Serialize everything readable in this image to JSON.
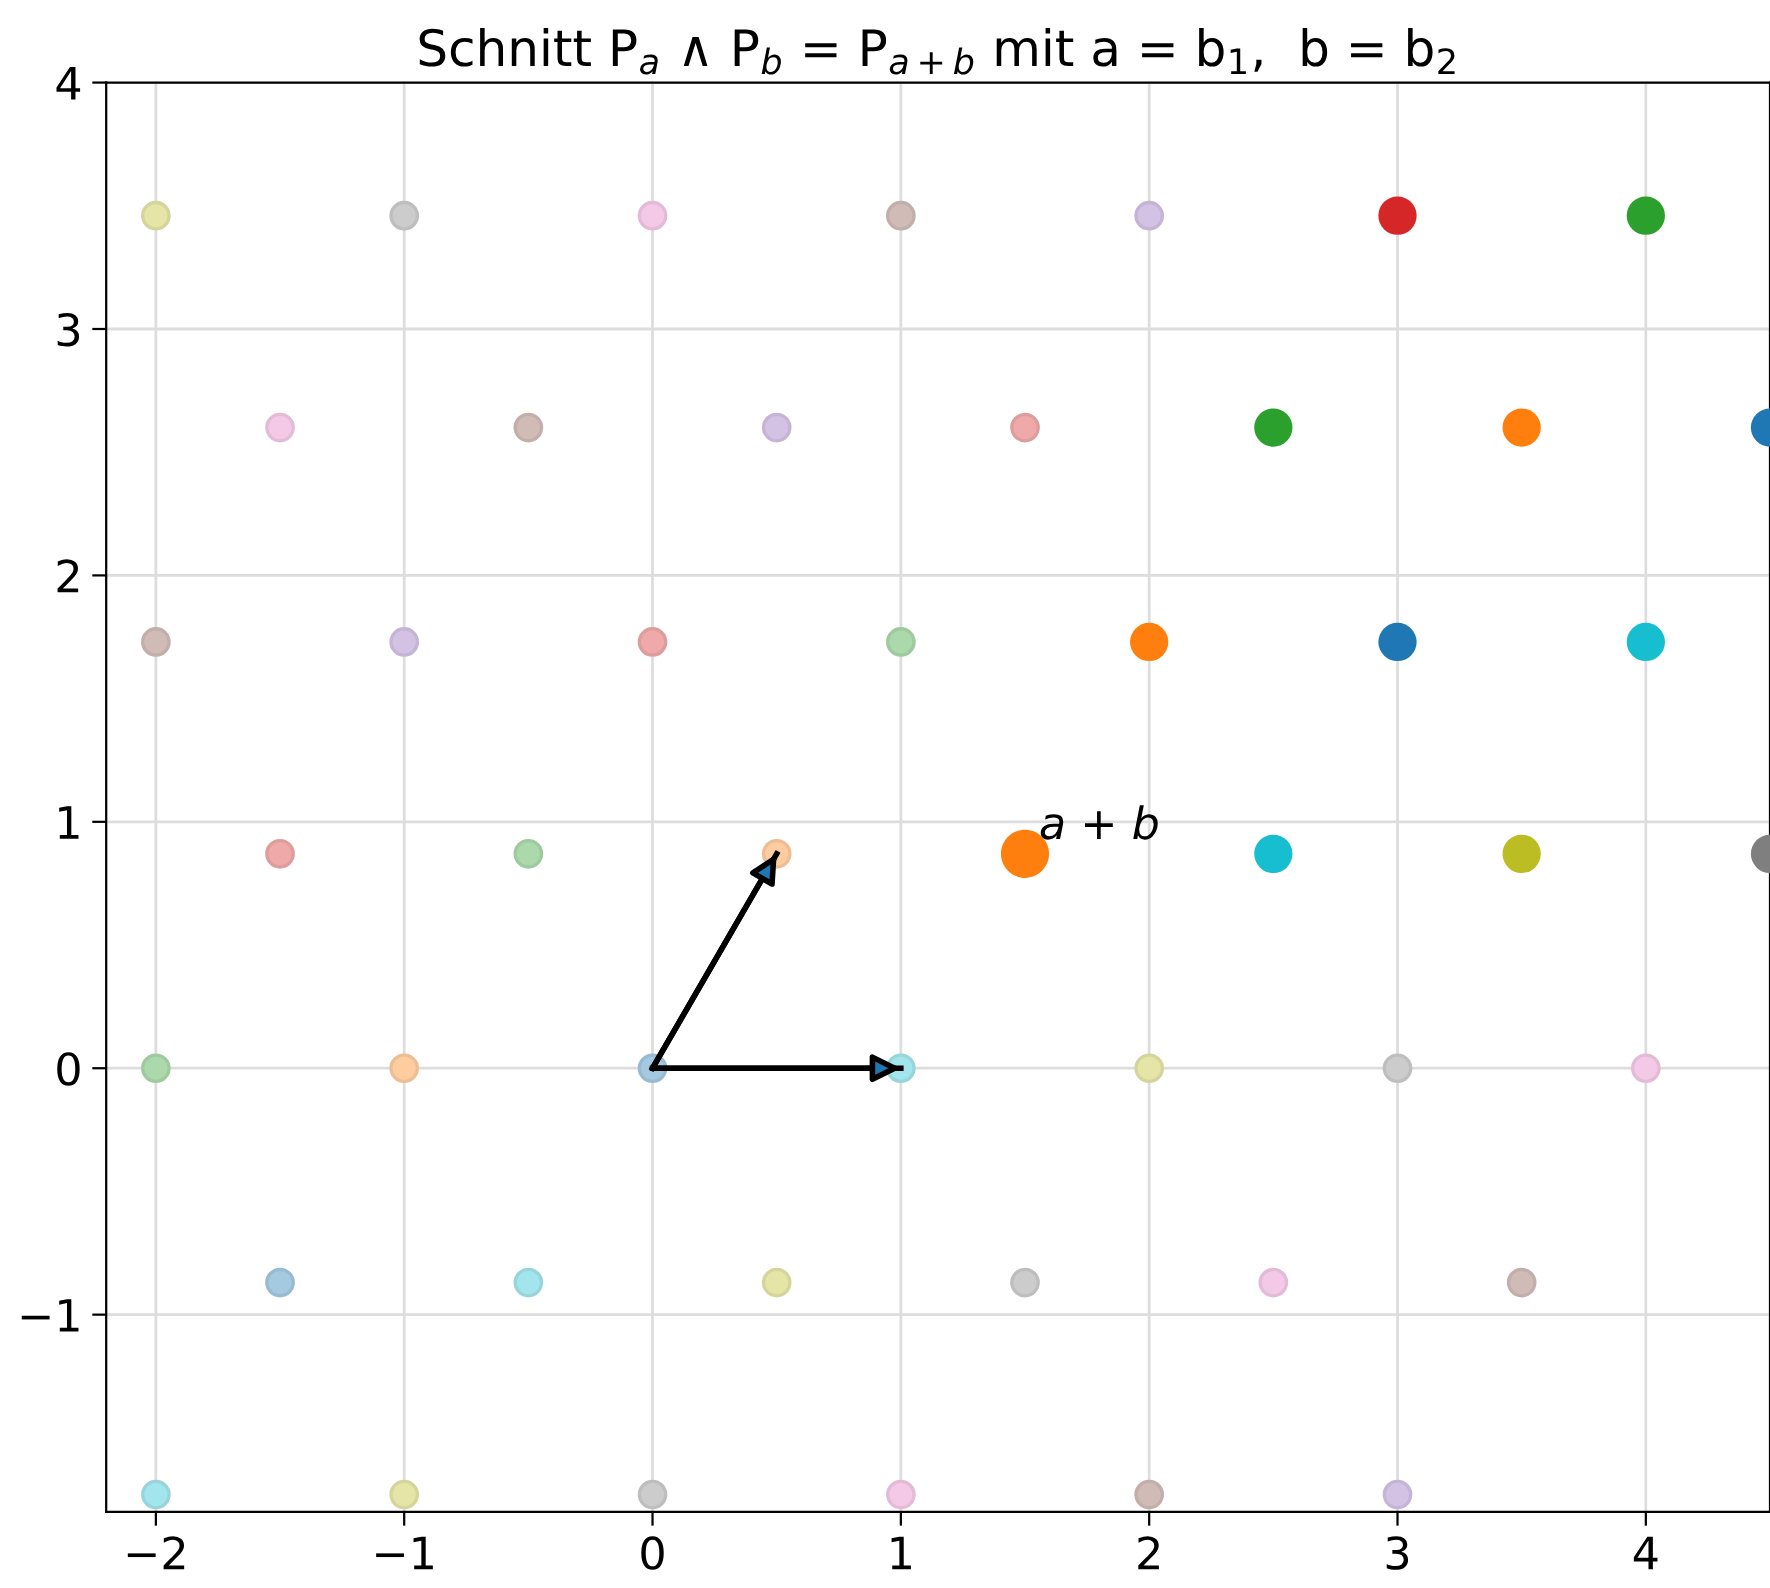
{
  "chart_data": {
    "type": "scatter",
    "title": "Schnitt P$_{a}$ ∧ P$_{b}$ = P$_{a+b}$ mit a = b$_{1}$,  b = b$_{2}$",
    "xlim": [
      -2.2,
      4.5
    ],
    "ylim": [
      -1.8,
      4
    ],
    "xticks": [
      -2,
      -1,
      0,
      1,
      2,
      3,
      4
    ],
    "yticks": [
      -1,
      0,
      1,
      2,
      3,
      4
    ],
    "grid": true,
    "annotations": [
      {
        "text": "a + b",
        "x": 1.5,
        "y": 0.87
      }
    ],
    "series": [
      {
        "marker": "circle",
        "x": [
          -2,
          -1,
          0,
          1,
          2,
          -1.5,
          -0.5,
          0.5,
          1.5,
          -2,
          -1,
          0,
          1,
          -1.5,
          -0.5,
          0.5,
          -2,
          -1,
          0,
          1,
          2,
          3,
          4,
          -1.5,
          -0.5,
          0.5,
          1.5,
          2.5,
          3.5,
          -2,
          -1,
          0,
          1,
          2,
          3
        ],
        "values": [
          3.46,
          3.46,
          3.46,
          3.46,
          3.46,
          2.6,
          2.6,
          2.6,
          2.6,
          1.73,
          1.73,
          1.73,
          1.73,
          0.87,
          0.87,
          0.87,
          0,
          0,
          0,
          0,
          0,
          0,
          0,
          -0.87,
          -0.87,
          -0.87,
          -0.87,
          -0.87,
          -0.87,
          -1.73,
          -1.73,
          -1.73,
          -1.73,
          -1.73,
          -1.73
        ],
        "colors": [
          "#e4e5a7",
          "#cccccc",
          "#f4c9e7",
          "#d1bbb7",
          "#d4c2e5",
          "#f4c9e7",
          "#d1bbb7",
          "#d4c2e5",
          "#efa9a9",
          "#d1bbb7",
          "#d4c2e5",
          "#efa9a9",
          "#abd9ab",
          "#efa9a9",
          "#abd9ab",
          "#ffcc9f",
          "#abd9ab",
          "#ffcc9f",
          "#a5c9e1",
          "#a2e5ec",
          "#e4e5a7",
          "#cccccc",
          "#f4c9e7",
          "#a5c9e1",
          "#a2e5ec",
          "#e4e5a7",
          "#cccccc",
          "#f4c9e7",
          "#d1bbb7",
          "#a2e5ec",
          "#e4e5a7",
          "#cccccc",
          "#f4c9e7",
          "#d1bbb7",
          "#d4c2e5"
        ]
      },
      {
        "marker": "circle",
        "x": [
          3,
          4,
          2.5,
          3.5,
          4.5,
          2,
          3,
          4,
          2.5,
          3.5,
          4.5
        ],
        "values": [
          3.46,
          3.46,
          2.6,
          2.6,
          2.6,
          1.73,
          1.73,
          1.73,
          0.87,
          0.87,
          0.87
        ],
        "colors": [
          "#d62728",
          "#2ca02c",
          "#2ca02c",
          "#ff7f0e",
          "#1f77b4",
          "#ff7f0e",
          "#1f77b4",
          "#17becf",
          "#17becf",
          "#bcbd22",
          "#7f7f7f"
        ]
      },
      {
        "marker": "circle",
        "x": [
          1.5
        ],
        "values": [
          0.87
        ],
        "colors": [
          "#ff7f0e"
        ]
      },
      {
        "type": "line",
        "marker": "none",
        "x": [
          0,
          0.5
        ],
        "values": [
          0,
          0.87
        ],
        "color": "#000000"
      },
      {
        "type": "line",
        "marker": "none",
        "x": [
          0,
          1
        ],
        "values": [
          0,
          0
        ],
        "color": "#000000"
      }
    ]
  }
}
